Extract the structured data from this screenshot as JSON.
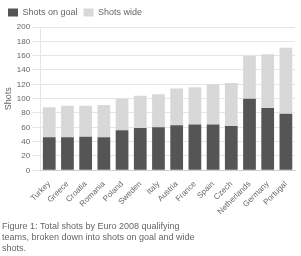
{
  "chart_data": {
    "type": "bar",
    "categories": [
      "Turkey",
      "Greece",
      "Croatia",
      "Romania",
      "Poland",
      "Sweden",
      "Italy",
      "Austria",
      "France",
      "Spain",
      "Czech",
      "Netherlands",
      "Germany",
      "Portugal"
    ],
    "series": [
      {
        "name": "Shots on goal",
        "color": "#555555",
        "values": [
          46,
          46,
          47,
          46,
          56,
          59,
          60,
          63,
          64,
          64,
          62,
          100,
          87,
          79
        ]
      },
      {
        "name": "Shots wide",
        "color": "#d8d8d8",
        "values": [
          42,
          44,
          43,
          45,
          44,
          45,
          46,
          51,
          52,
          56,
          60,
          60,
          75,
          92
        ]
      }
    ],
    "stacked": true,
    "y_label": "Shots",
    "ylim": [
      0,
      200
    ],
    "yticks": [
      0,
      20,
      40,
      60,
      80,
      100,
      120,
      140,
      160,
      180,
      200
    ],
    "grid": true,
    "legend": "upper left",
    "annotations": [
      "Figure 1: Total shots by Euro 2008 qualifying",
      "teams, broken down into shots on goal and wide",
      "shots."
    ]
  }
}
